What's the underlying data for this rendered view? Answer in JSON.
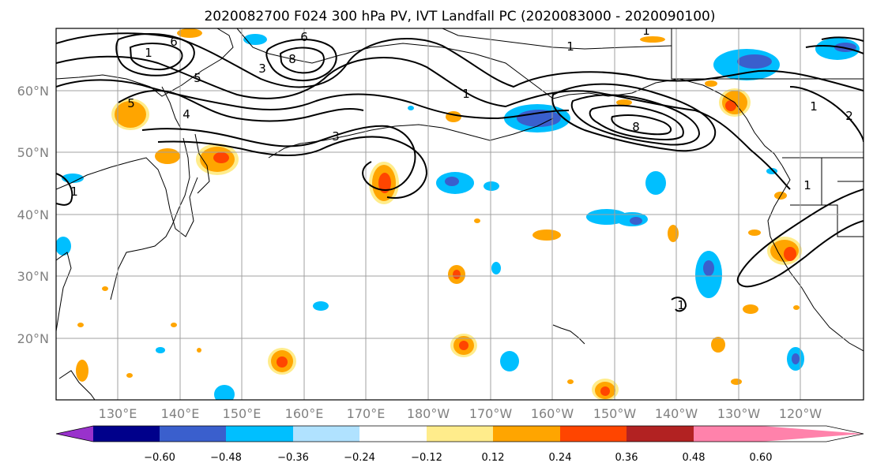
{
  "title": "2020082700 F024 300 hPa PV, IVT Landfall PC (2020083000 - 2020090100)",
  "map": {
    "lat_labels": [
      "60°N",
      "50°N",
      "40°N",
      "30°N",
      "20°N"
    ],
    "lon_labels": [
      "130°E",
      "140°E",
      "150°E",
      "160°E",
      "170°E",
      "180°W",
      "170°W",
      "160°W",
      "150°W",
      "140°W",
      "130°W",
      "120°W"
    ],
    "grid": true,
    "contour_labels": [
      "6",
      "6",
      "8",
      "1",
      "5",
      "4",
      "5",
      "3",
      "1",
      "3",
      "1",
      "1",
      "8",
      "1",
      "1",
      "2",
      "1",
      "1"
    ]
  },
  "colorbar": {
    "ticks": [
      "−0.60",
      "−0.48",
      "−0.36",
      "−0.24",
      "−0.12",
      "0.12",
      "0.24",
      "0.36",
      "0.48",
      "0.60"
    ],
    "colors": [
      "#9932cc",
      "#00008b",
      "#3a5fcd",
      "#00bfff",
      "#b0e2ff",
      "#ffffff",
      "#ffec8b",
      "#ffa500",
      "#ff4500",
      "#b22222",
      "#ff82ab"
    ],
    "extend": "both"
  },
  "colors": {
    "neg_strong": "#3a5fcd",
    "neg_mid": "#00bfff",
    "neg_weak": "#b0e2ff",
    "pos_weak": "#ffec8b",
    "pos_mid": "#ffa500",
    "pos_strong": "#ff4500",
    "grid": "#a0a0a0"
  }
}
